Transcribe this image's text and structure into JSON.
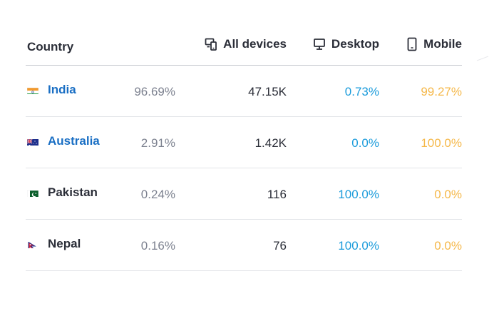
{
  "header": {
    "country_label": "Country",
    "all_devices_label": "All devices",
    "desktop_label": "Desktop",
    "mobile_label": "Mobile"
  },
  "colors": {
    "link": "#1a6fc4",
    "desktop": "#1a9bdb",
    "mobile": "#f5b84a",
    "share": "#7d8290",
    "text": "#2b2e38"
  },
  "rows": [
    {
      "country": "India",
      "flag": "india-flag-icon",
      "share": "96.69%",
      "all_devices": "47.15K",
      "desktop": "0.73%",
      "mobile": "99.27%",
      "linked": true
    },
    {
      "country": "Australia",
      "flag": "australia-flag-icon",
      "share": "2.91%",
      "all_devices": "1.42K",
      "desktop": "0.0%",
      "mobile": "100.0%",
      "linked": true
    },
    {
      "country": "Pakistan",
      "flag": "pakistan-flag-icon",
      "share": "0.24%",
      "all_devices": "116",
      "desktop": "100.0%",
      "mobile": "0.0%",
      "linked": false
    },
    {
      "country": "Nepal",
      "flag": "nepal-flag-icon",
      "share": "0.16%",
      "all_devices": "76",
      "desktop": "100.0%",
      "mobile": "0.0%",
      "linked": false
    }
  ]
}
